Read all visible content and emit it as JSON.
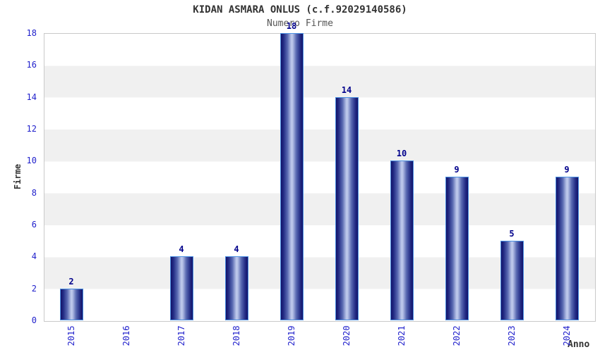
{
  "chart_data": {
    "type": "bar",
    "title": "KIDAN ASMARA ONLUS (c.f.92029140586)",
    "subtitle": "Numero Firme",
    "xlabel": "Anno",
    "ylabel": "Firme",
    "categories": [
      "2015",
      "2016",
      "2017",
      "2018",
      "2019",
      "2020",
      "2021",
      "2022",
      "2023",
      "2024"
    ],
    "values": [
      2,
      0,
      4,
      4,
      18,
      14,
      10,
      9,
      5,
      9
    ],
    "yticks": [
      0,
      2,
      4,
      6,
      8,
      10,
      12,
      14,
      16,
      18
    ],
    "ylim": [
      0,
      18
    ],
    "legend": false,
    "grid": "alternating-horizontal-bands",
    "band_interval": 2,
    "colors": {
      "bar_edge_dark": "#131368",
      "bar_center_light": "#c2cdee",
      "bar_border": "#4a90e2",
      "tick_label": "#2222cc",
      "value_label": "#00008b",
      "band_gray": "#f0f0f0",
      "band_white": "#ffffff",
      "plot_border": "#c9c9c9",
      "title": "#333333",
      "subtitle": "#555555",
      "axis_title": "#333333"
    }
  }
}
